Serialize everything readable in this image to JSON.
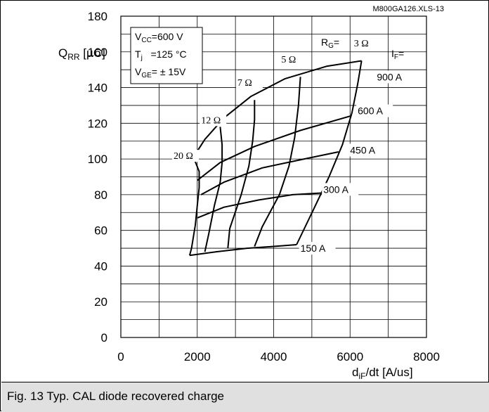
{
  "figure": {
    "file_id": "M800GA126.XLS-13",
    "caption": "Fig. 13 Typ. CAL diode recovered charge"
  },
  "chart_data": {
    "type": "line",
    "ylabel_main": "Q",
    "ylabel_sub": "RR",
    "ylabel_unit": " [µC]",
    "xlabel_main": "d",
    "xlabel_sub": "iF",
    "xlabel_unit": "/dt [A/us]",
    "xlim": [
      0,
      8000
    ],
    "ylim": [
      0,
      180
    ],
    "x_ticks": [
      0,
      2000,
      4000,
      6000,
      8000
    ],
    "y_ticks": [
      0,
      20,
      40,
      60,
      80,
      100,
      120,
      140,
      160,
      180
    ],
    "x_tick_labels": [
      "0",
      "2000",
      "4000",
      "6000",
      "8000"
    ],
    "y_tick_labels": [
      "0",
      "20",
      "40",
      "60",
      "80",
      "100",
      "120",
      "140",
      "160",
      "180"
    ],
    "grid": true,
    "conditions": {
      "vcc_main": "V",
      "vcc_sub": "CC",
      "vcc_val": "=600 V",
      "tj_main": "T",
      "tj_sub": "j",
      "tj_val": "   =125 °C",
      "vge_main": "V",
      "vge_sub": "GE",
      "vge_val": "= ± 15V"
    },
    "rg_header_main": "R",
    "rg_header_sub": "G",
    "rg_header_val": "= ",
    "if_header_main": "I",
    "if_header_sub": "F",
    "if_header_val": "=",
    "current_curves": [
      {
        "label": "900 A",
        "points": [
          [
            1900,
            101
          ],
          [
            2200,
            111
          ],
          [
            2700,
            123
          ],
          [
            3400,
            135
          ],
          [
            4300,
            145
          ],
          [
            5400,
            152
          ],
          [
            6300,
            155
          ]
        ]
      },
      {
        "label": "600 A",
        "points": [
          [
            2000,
            88
          ],
          [
            2600,
            98
          ],
          [
            3500,
            107
          ],
          [
            4700,
            116
          ],
          [
            6000,
            124
          ]
        ]
      },
      {
        "label": "450 A",
        "points": [
          [
            2100,
            80
          ],
          [
            2700,
            87
          ],
          [
            3700,
            95
          ],
          [
            4800,
            100
          ],
          [
            5700,
            104
          ]
        ]
      },
      {
        "label": "300 A",
        "points": [
          [
            2000,
            67
          ],
          [
            2700,
            73
          ],
          [
            3600,
            77
          ],
          [
            4500,
            80
          ],
          [
            5300,
            81
          ]
        ]
      },
      {
        "label": "150 A",
        "points": [
          [
            1800,
            46
          ],
          [
            2500,
            48
          ],
          [
            3300,
            50
          ],
          [
            4000,
            51
          ],
          [
            4600,
            52
          ]
        ]
      }
    ],
    "resistance_curves": [
      {
        "label": "3 Ω",
        "points": [
          [
            6300,
            155
          ],
          [
            6200,
            142
          ],
          [
            6050,
            126
          ],
          [
            5800,
            108
          ],
          [
            5450,
            90
          ],
          [
            5050,
            72
          ],
          [
            4600,
            52
          ]
        ]
      },
      {
        "label": "5 Ω",
        "points": [
          [
            4700,
            146
          ],
          [
            4650,
            130
          ],
          [
            4550,
            112
          ],
          [
            4400,
            96
          ],
          [
            4150,
            80
          ],
          [
            3700,
            62
          ],
          [
            3500,
            51
          ]
        ]
      },
      {
        "label": "7 Ω",
        "points": [
          [
            3500,
            133
          ],
          [
            3500,
            122
          ],
          [
            3450,
            110
          ],
          [
            3350,
            96
          ],
          [
            3150,
            80
          ],
          [
            2850,
            61
          ],
          [
            2800,
            50
          ]
        ]
      },
      {
        "label": "12 Ω",
        "points": [
          [
            2600,
            118
          ],
          [
            2650,
            108
          ],
          [
            2650,
            98
          ],
          [
            2600,
            87
          ],
          [
            2450,
            74
          ],
          [
            2300,
            58
          ],
          [
            2200,
            48
          ]
        ]
      },
      {
        "label": "20 Ω",
        "points": [
          [
            1900,
            101
          ],
          [
            2050,
            93
          ],
          [
            2050,
            84
          ],
          [
            2000,
            74
          ],
          [
            1950,
            63
          ],
          [
            1850,
            50
          ],
          [
            1800,
            46
          ]
        ]
      }
    ],
    "resistance_label_pos": [
      {
        "label": "3 Ω",
        "x": 6100,
        "y": 163
      },
      {
        "label": "5 Ω",
        "x": 4200,
        "y": 154
      },
      {
        "label": "7 Ω",
        "x": 3050,
        "y": 141
      },
      {
        "label": "12 Ω",
        "x": 2100,
        "y": 120
      },
      {
        "label": "20 Ω",
        "x": 1380,
        "y": 100
      }
    ],
    "current_label_pos": [
      {
        "label": "900 A",
        "x": 6700,
        "y": 144
      },
      {
        "label": "600 A",
        "x": 6200,
        "y": 125
      },
      {
        "label": "450 A",
        "x": 6000,
        "y": 103
      },
      {
        "label": "300 A",
        "x": 5300,
        "y": 81
      },
      {
        "label": "150 A",
        "x": 4700,
        "y": 48
      }
    ]
  }
}
